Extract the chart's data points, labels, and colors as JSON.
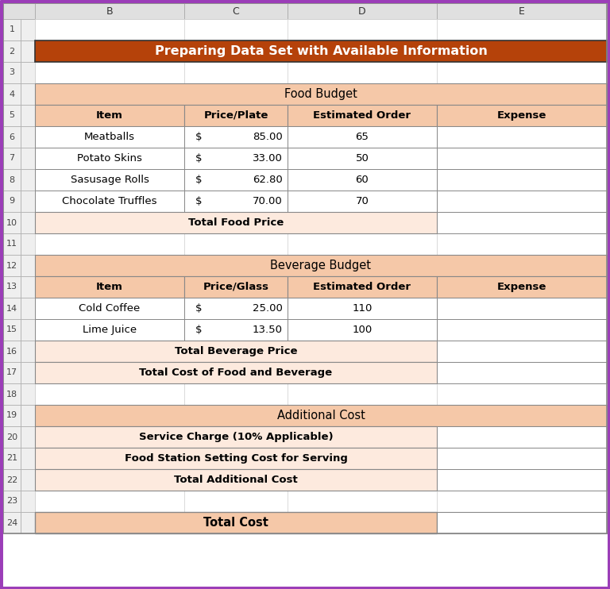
{
  "title": "Preparing Data Set with Available Information",
  "title_bg": "#B5420A",
  "title_color": "#FFFFFF",
  "light_bg": "#F5C8A8",
  "data_bg": "#FDEADE",
  "white_bg": "#FFFFFF",
  "col_header_bg": "#E0E0E0",
  "row_header_bg": "#EFEFEF",
  "border_dark": "#555555",
  "border_light": "#AAAAAA",
  "purple_border": "#9B3DB8",
  "food_budget_title": "Food Budget",
  "food_headers": [
    "Item",
    "Price/Plate",
    "Estimated Order",
    "Expense"
  ],
  "food_rows": [
    [
      "Meatballs",
      "$",
      "85.00",
      "65"
    ],
    [
      "Potato Skins",
      "$",
      "33.00",
      "50"
    ],
    [
      "Sasusage Rolls",
      "$",
      "62.80",
      "60"
    ],
    [
      "Chocolate Truffles",
      "$",
      "70.00",
      "70"
    ]
  ],
  "food_total": "Total Food Price",
  "beverage_budget_title": "Beverage Budget",
  "beverage_headers": [
    "Item",
    "Price/Glass",
    "Estimated Order",
    "Expense"
  ],
  "beverage_rows": [
    [
      "Cold Coffee",
      "$",
      "25.00",
      "110"
    ],
    [
      "Lime Juice",
      "$",
      "13.50",
      "100"
    ]
  ],
  "beverage_total": "Total Beverage Price",
  "food_bev_total": "Total Cost of Food and Beverage",
  "additional_title": "Additional Cost",
  "additional_rows": [
    "Service Charge (10% Applicable)",
    "Food Station Setting Cost for Serving",
    "Total Additional Cost"
  ],
  "total_cost": "Total Cost"
}
